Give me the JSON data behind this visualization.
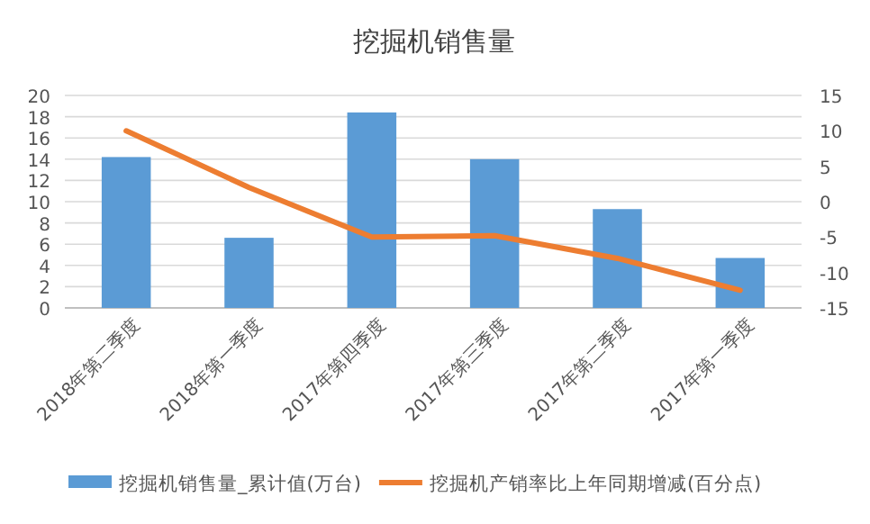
{
  "chart_data": {
    "type": "bar",
    "title": "挖掘机销售量",
    "categories": [
      "2018年第二季度",
      "2018年第一季度",
      "2017年第四季度",
      "2017年第三季度",
      "2017年第二季度",
      "2017年第一季度"
    ],
    "series": [
      {
        "name": "挖掘机销售量_累计值(万台)",
        "color": "#5b9bd5",
        "values": [
          14.2,
          6.6,
          18.4,
          14.0,
          9.3,
          4.7
        ]
      },
      {
        "name": "挖掘机产销率比上年同期增减(百分点)",
        "type": "line",
        "axis": "y2",
        "color": "#ed7d31",
        "values": [
          10,
          2,
          -5,
          -4.8,
          -8,
          -12.5
        ]
      }
    ],
    "ylim": [
      0,
      20
    ],
    "yticks": [
      0,
      2,
      4,
      6,
      8,
      10,
      12,
      14,
      16,
      18,
      20
    ],
    "y2lim": [
      -15,
      15
    ],
    "y2ticks": [
      -15,
      -10,
      -5,
      0,
      5,
      10,
      15
    ],
    "grid": "y",
    "legend": "bottom"
  }
}
